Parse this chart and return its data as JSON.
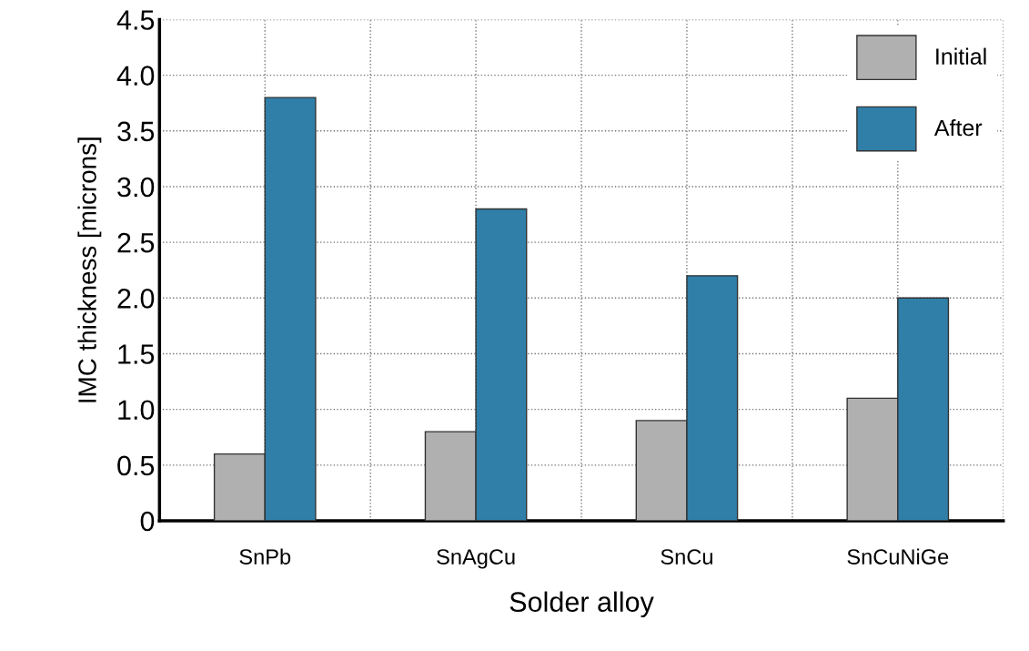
{
  "chart_data": {
    "type": "bar",
    "xlabel": "Solder alloy",
    "ylabel": "IMC thickness [microns]",
    "categories": [
      "SnPb",
      "SnAgCu",
      "SnCu",
      "SnCuNiGe"
    ],
    "series": [
      {
        "name": "Initial",
        "color": "#b0b0b0",
        "values": [
          0.6,
          0.8,
          0.9,
          1.1
        ]
      },
      {
        "name": "After",
        "color": "#2f7fa8",
        "values": [
          3.8,
          2.8,
          2.2,
          2.0
        ]
      }
    ],
    "ylim": [
      0,
      4.5
    ],
    "yticks": [
      {
        "value": 0,
        "label": "0"
      },
      0.5,
      {
        "value": 1,
        "label": "1.0"
      },
      1.5,
      {
        "value": 2,
        "label": "2.0"
      },
      2.5,
      {
        "value": 3,
        "label": "3.0"
      },
      3.5,
      {
        "value": 4,
        "label": "4.0"
      },
      4.5
    ],
    "grid": true,
    "legend": "top right"
  }
}
